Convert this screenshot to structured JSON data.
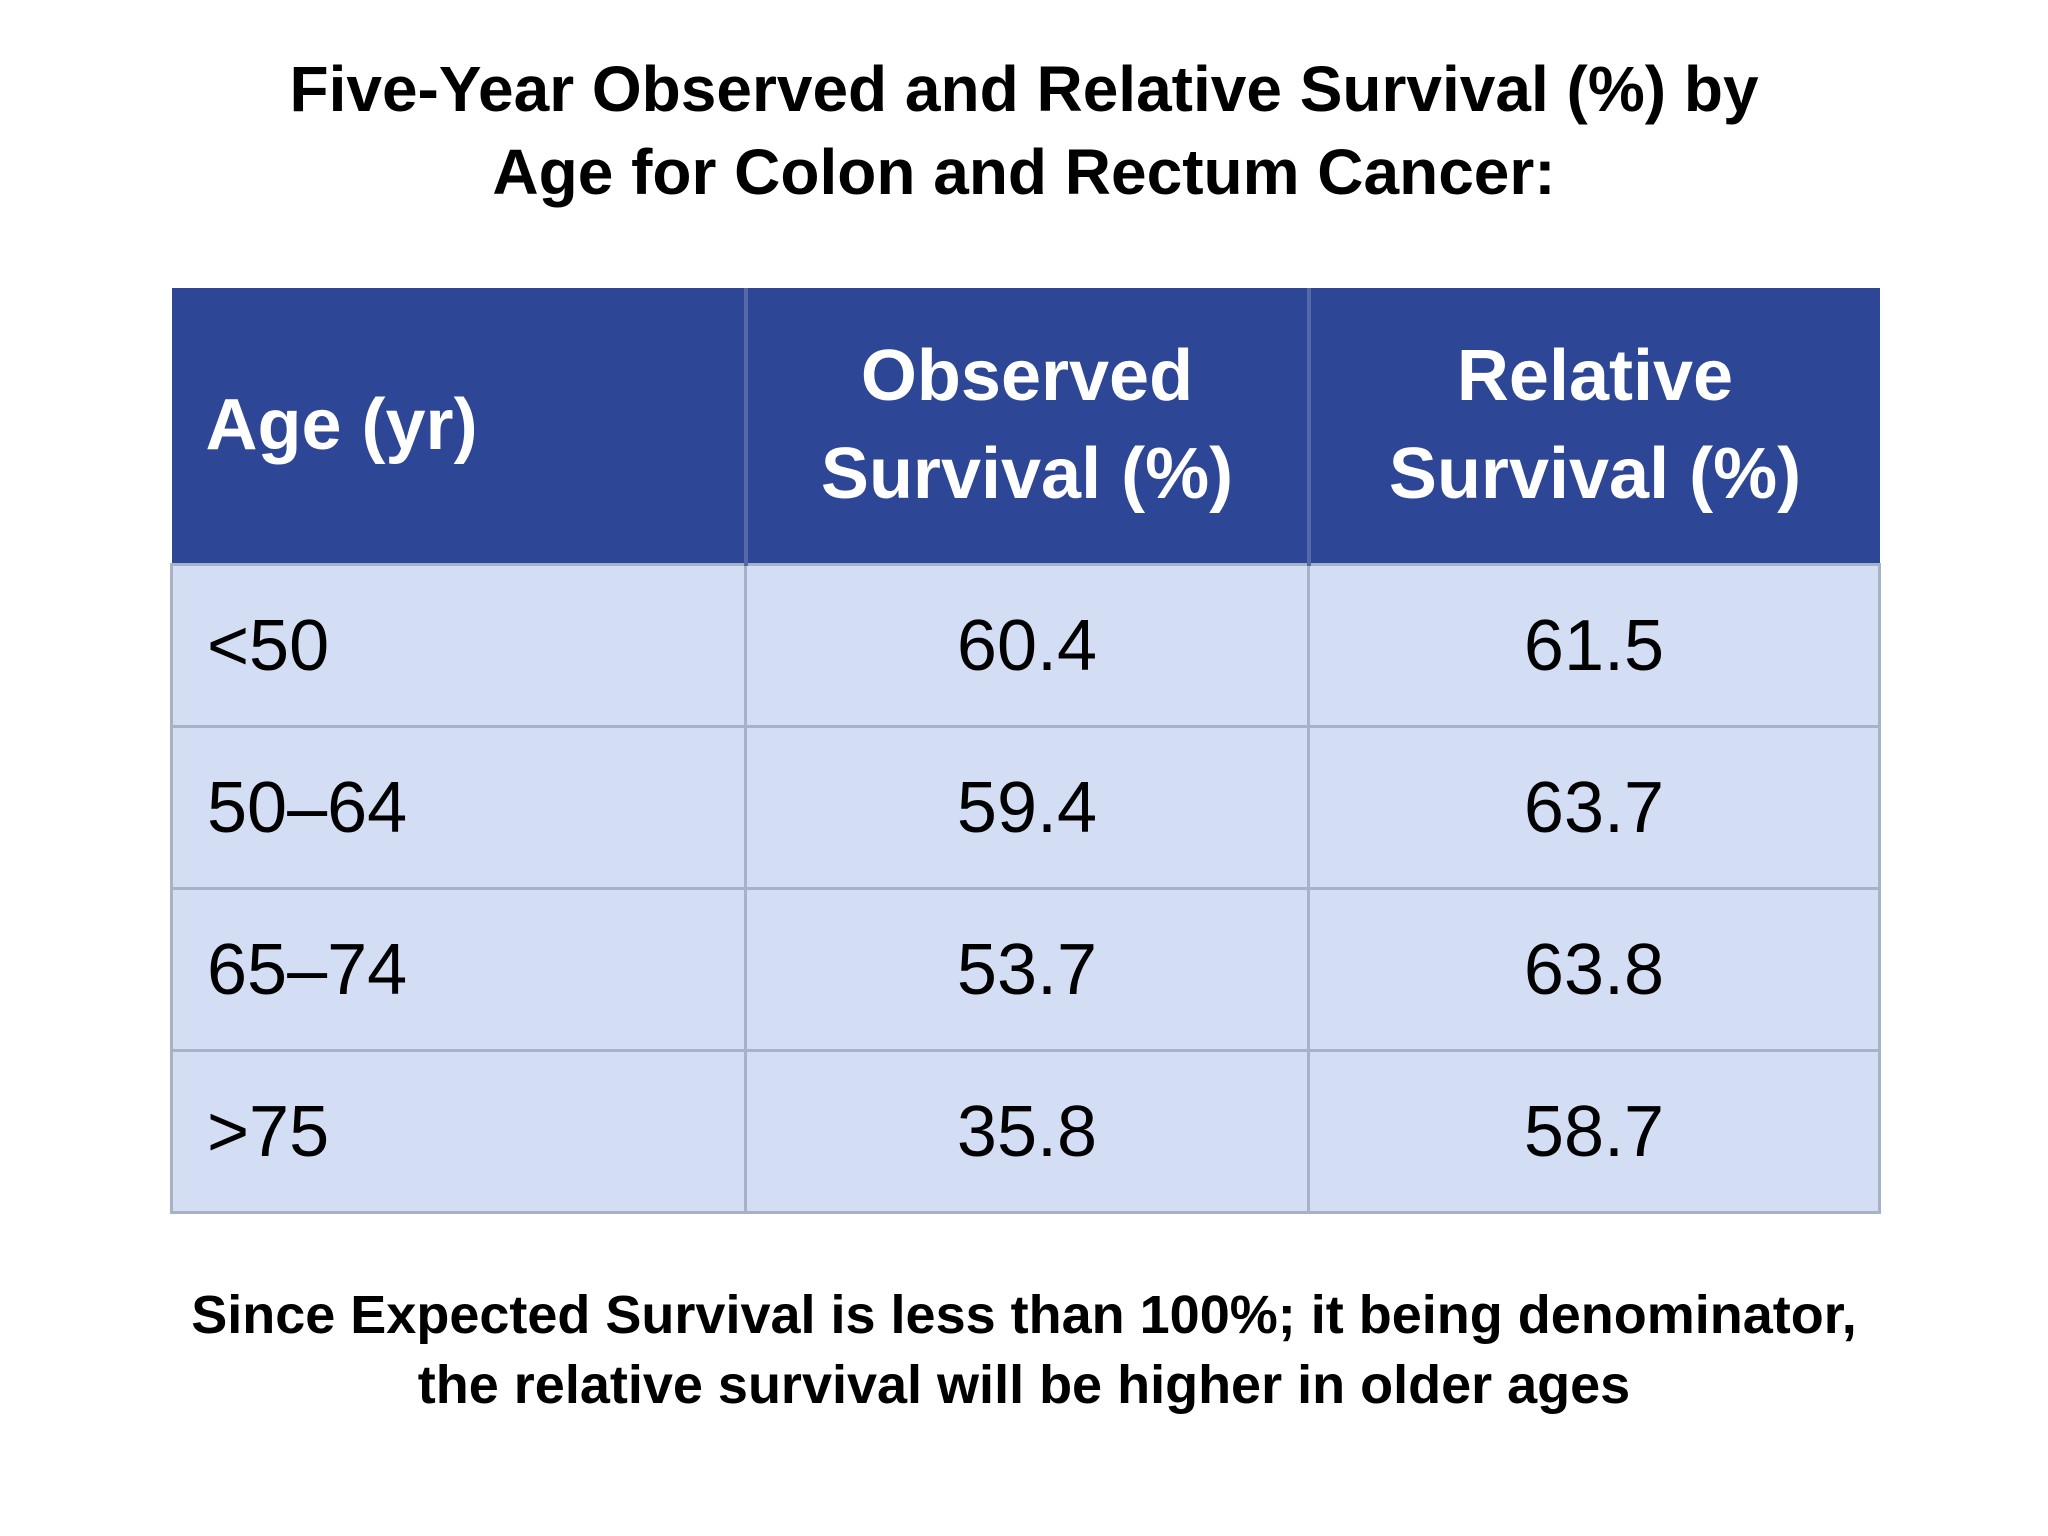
{
  "slide": {
    "title_line1": "Five-Year Observed and Relative Survival (%) by",
    "title_line2": "Age for Colon and Rectum Cancer:",
    "footnote_line1": "Since Expected Survival is less than 100%; it being denominator,",
    "footnote_line2": "the relative survival will be higher in older ages"
  },
  "table": {
    "columns": [
      "Age (yr)",
      "Observed Survival (%)",
      "Relative Survival (%)"
    ],
    "rows": [
      [
        "<50",
        "60.4",
        "61.5"
      ],
      [
        "50–64",
        "59.4",
        "63.7"
      ],
      [
        "65–74",
        "53.7",
        "63.8"
      ],
      [
        ">75",
        "35.8",
        "58.7"
      ]
    ]
  },
  "colors": {
    "header_bg": "#2D4695",
    "header_divider": "#5568A8",
    "header_text": "#FFFFFF",
    "row_bg": "#D3DDF4",
    "grid": "#A8B2C6",
    "body_text": "#000000"
  },
  "chart_data": {
    "type": "table",
    "title": "Five-Year Observed and Relative Survival (%) by Age for Colon and Rectum Cancer",
    "columns": [
      "Age (yr)",
      "Observed Survival (%)",
      "Relative Survival (%)"
    ],
    "rows": [
      {
        "age": "<50",
        "observed_survival_pct": 60.4,
        "relative_survival_pct": 61.5
      },
      {
        "age": "50–64",
        "observed_survival_pct": 59.4,
        "relative_survival_pct": 63.7
      },
      {
        "age": "65–74",
        "observed_survival_pct": 53.7,
        "relative_survival_pct": 63.8
      },
      {
        "age": ">75",
        "observed_survival_pct": 35.8,
        "relative_survival_pct": 58.7
      }
    ],
    "annotation": "Since Expected Survival is less than 100%; it being denominator, the relative survival will be higher in older ages",
    "layout": {
      "header_fill": "#2D4695",
      "body_fill": "#D3DDF4",
      "grid": true
    }
  }
}
